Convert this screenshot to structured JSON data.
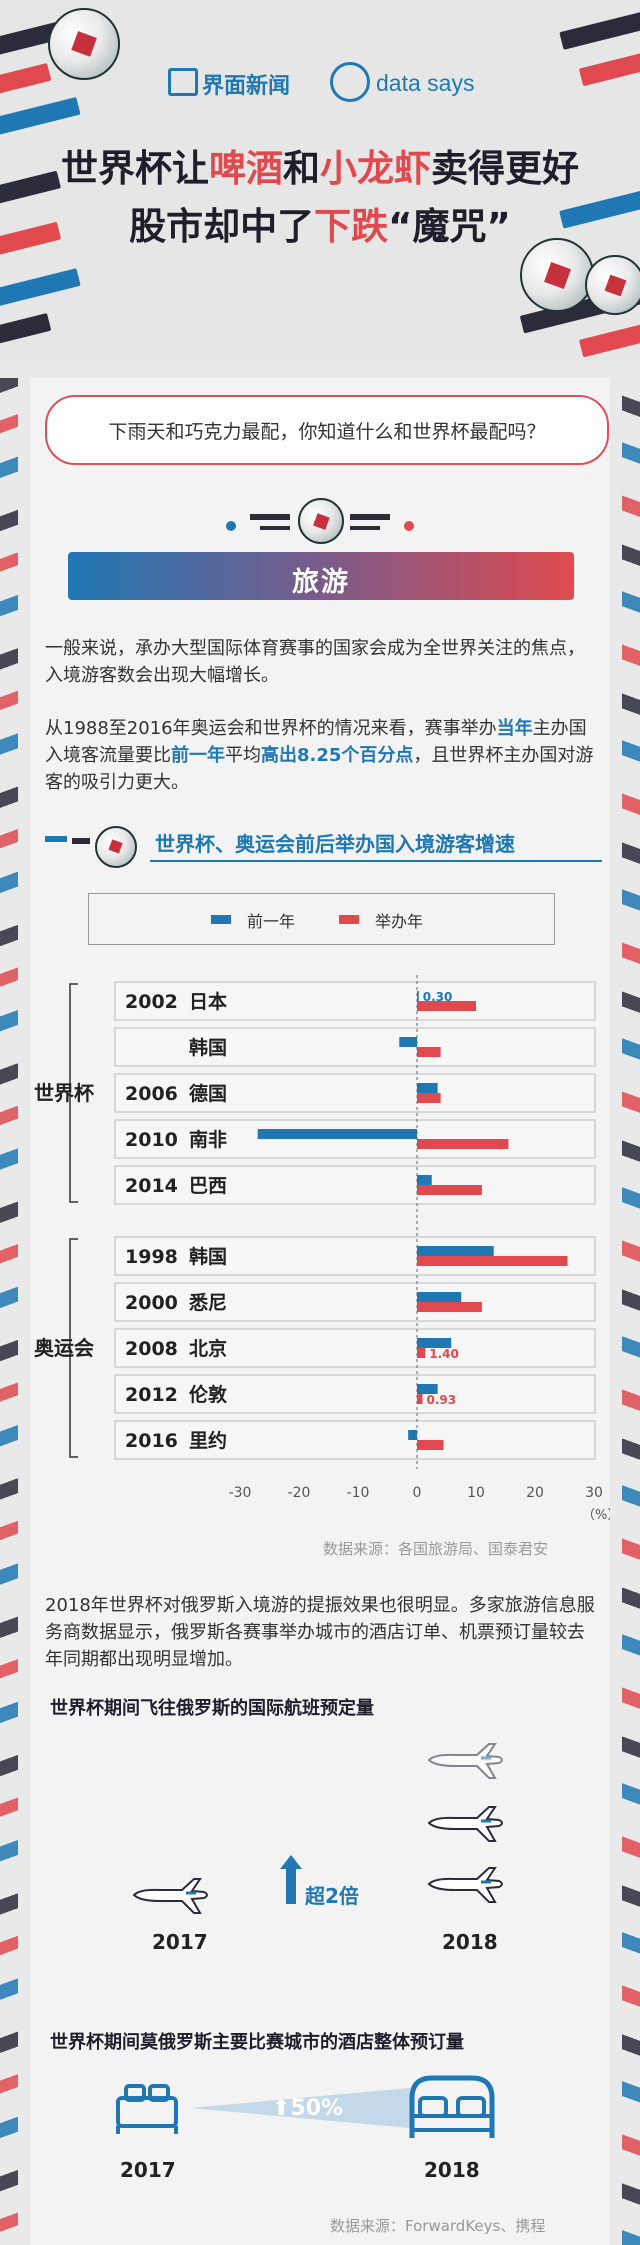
{
  "header": {
    "brand_cn": "界面新闻",
    "brand_ds": "data says",
    "title_line1_a": "世界杯让",
    "title_line1_b": "啤酒",
    "title_line1_c": "和",
    "title_line1_d": "小龙虾",
    "title_line1_e": "卖得更好",
    "title_line2_a": "股市却中了",
    "title_line2_b": "下跌",
    "title_line2_c": "“魔咒”"
  },
  "question": "下雨天和巧克力最配，你知道什么和世界杯最配吗？",
  "section": "旅游",
  "para1": "一般来说，承办大型国际体育赛事的国家会成为全世界关注的焦点，入境游客数会出现大幅增长。",
  "para2": {
    "a": "从1988至2016年奥运会和世界杯的情况来看，赛事举办",
    "b": "当年",
    "c": "主办国入境客流量要比",
    "d": "前一年",
    "e": "平均",
    "f": "高出8.25个百分点",
    "g": "，且世界杯主办国对游客的吸引力更大。"
  },
  "chart_title": "世界杯、奥运会前后举办国入境游客增速",
  "colors": {
    "prev": "#1f78b4",
    "host": "#e04a4f",
    "text": "#1f1f2b"
  },
  "chart_data": {
    "type": "bar",
    "orientation": "horizontal",
    "series": [
      {
        "name": "前一年",
        "values": [
          0.3,
          -3,
          3.5,
          -27,
          2.5,
          13,
          7.5,
          5.8,
          3.5,
          -1.5
        ]
      },
      {
        "name": "举办年",
        "values": [
          10,
          4,
          4,
          15.5,
          11,
          25.5,
          11,
          1.4,
          0.93,
          4.5
        ]
      }
    ],
    "groups": [
      {
        "name": "世界杯",
        "rows": [
          {
            "year": "2002",
            "place": "日本"
          },
          {
            "year": "",
            "place": "韩国"
          },
          {
            "year": "2006",
            "place": "德国"
          },
          {
            "year": "2010",
            "place": "南非"
          },
          {
            "year": "2014",
            "place": "巴西"
          }
        ]
      },
      {
        "name": "奥运会",
        "rows": [
          {
            "year": "1998",
            "place": "韩国"
          },
          {
            "year": "2000",
            "place": "悉尼"
          },
          {
            "year": "2008",
            "place": "北京"
          },
          {
            "year": "2012",
            "place": "伦敦"
          },
          {
            "year": "2016",
            "place": "里约"
          }
        ]
      }
    ],
    "data_labels": [
      {
        "series": 0,
        "row": 0,
        "text": "0.30"
      },
      {
        "series": 1,
        "row": 7,
        "text": "1.40"
      },
      {
        "series": 1,
        "row": 8,
        "text": "0.93"
      }
    ],
    "xlim": [
      -30,
      30
    ],
    "xticks": [
      "-30",
      "-20",
      "-10",
      "0",
      "10",
      "20",
      "30"
    ],
    "unit": "（%）"
  },
  "source1": "数据来源：各国旅游局、国泰君安",
  "para3": "2018年世界杯对俄罗斯入境游的提振效果也很明显。多家旅游信息服务商数据显示，俄罗斯各赛事举办城市的酒店订单、机票预订量较去年同期都出现明显增加。",
  "flight": {
    "title": "世界杯期间飞往俄罗斯的国际航班预定量",
    "year_a": "2017",
    "year_b": "2018",
    "growth": "超2倍"
  },
  "hotel": {
    "title": "世界杯期间莫俄罗斯主要比赛城市的酒店整体预订量",
    "year_a": "2017",
    "year_b": "2018",
    "growth": "50%"
  },
  "source2": "数据来源：ForwardKeys、携程"
}
